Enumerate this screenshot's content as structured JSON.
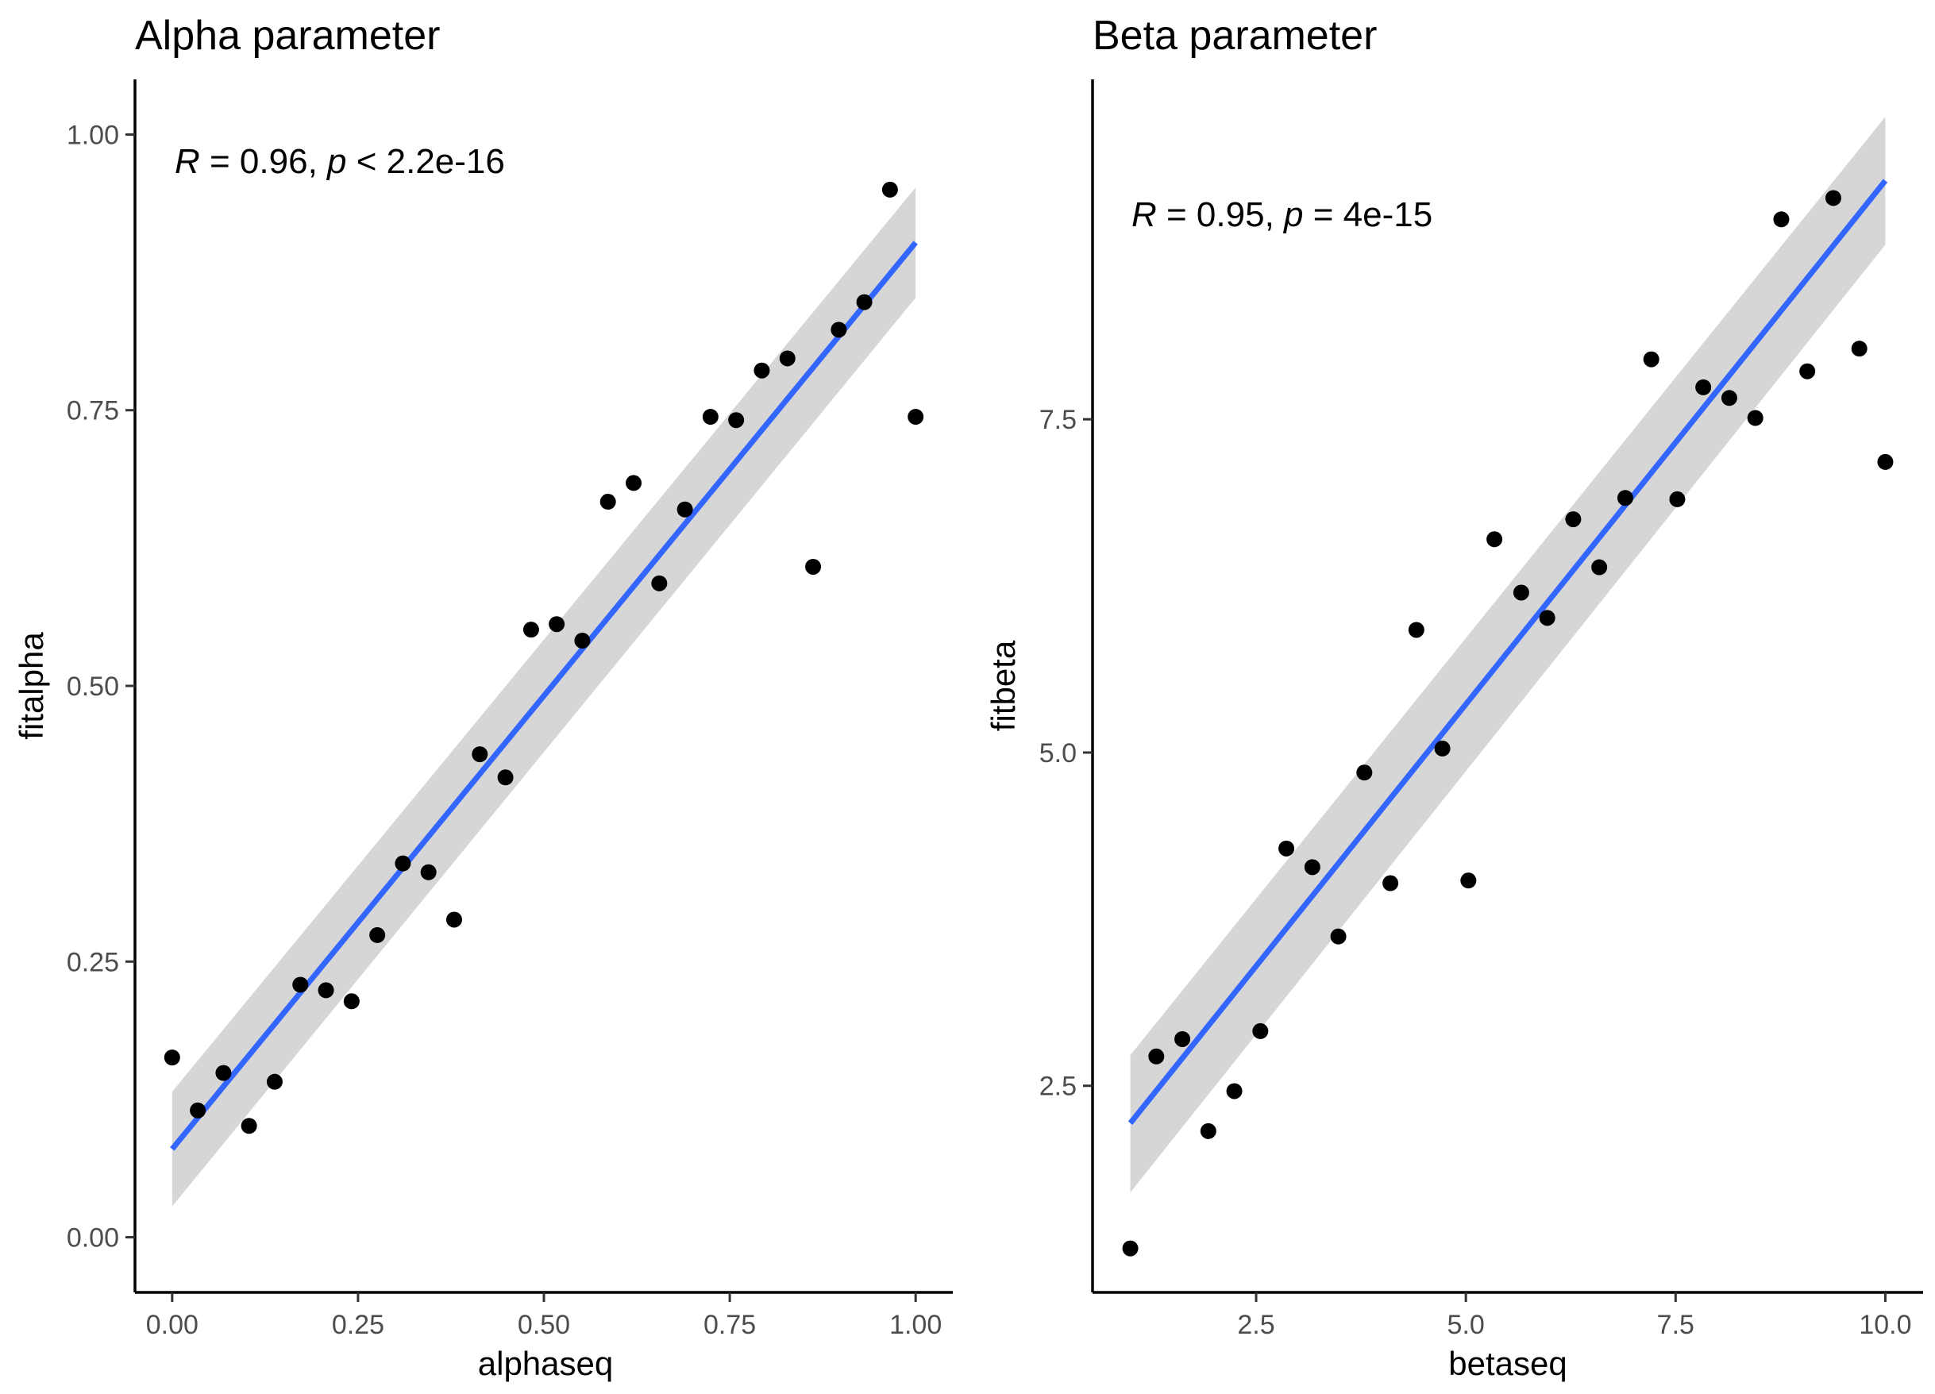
{
  "chart_data": [
    {
      "type": "scatter",
      "title": "Alpha parameter",
      "xlabel": "alphaseq",
      "ylabel": "fitalpha",
      "xlim": [
        -0.05,
        1.05
      ],
      "ylim": [
        -0.05,
        1.05
      ],
      "xticks": [
        0.0,
        0.25,
        0.5,
        0.75,
        1.0
      ],
      "xtick_labels": [
        "0.00",
        "0.25",
        "0.50",
        "0.75",
        "1.00"
      ],
      "yticks": [
        0.0,
        0.25,
        0.5,
        0.75,
        1.0
      ],
      "ytick_labels": [
        "0.00",
        "0.25",
        "0.50",
        "0.75",
        "1.00"
      ],
      "annotation": {
        "r_sym": "R",
        "r_text": " = 0.96, ",
        "p_sym": "p",
        "p_text": " < 2.2e-16",
        "x": 0.0,
        "y": 0.975
      },
      "fit": {
        "x": [
          0.0,
          1.0
        ],
        "y": [
          0.08,
          0.902
        ],
        "band_lower": [
          0.028,
          0.852
        ],
        "band_upper": [
          0.132,
          0.952
        ]
      },
      "grid": false,
      "legend": "none",
      "colors": {
        "points": "#000000",
        "fit_line": "#3366ff",
        "band": "#999999"
      },
      "x": [
        0.0,
        0.0345,
        0.069,
        0.1034,
        0.1379,
        0.1724,
        0.2069,
        0.2414,
        0.2759,
        0.3103,
        0.3448,
        0.3793,
        0.4138,
        0.4483,
        0.4828,
        0.5172,
        0.5517,
        0.5862,
        0.6207,
        0.6552,
        0.6897,
        0.7241,
        0.7586,
        0.7931,
        0.8276,
        0.8621,
        0.8966,
        0.931,
        0.9655,
        1.0
      ],
      "y": [
        0.163,
        0.115,
        0.149,
        0.101,
        0.141,
        0.229,
        0.224,
        0.214,
        0.274,
        0.339,
        0.331,
        0.288,
        0.438,
        0.417,
        0.551,
        0.556,
        0.541,
        0.667,
        0.684,
        0.593,
        0.66,
        0.744,
        0.741,
        0.786,
        0.797,
        0.608,
        0.823,
        0.848,
        0.95,
        0.744
      ]
    },
    {
      "type": "scatter",
      "title": "Beta parameter",
      "xlabel": "betaseq",
      "ylabel": "fitbeta",
      "xlim": [
        0.55,
        10.45
      ],
      "ylim": [
        0.95,
        10.05
      ],
      "xticks": [
        2.5,
        5.0,
        7.5,
        10.0
      ],
      "xtick_labels": [
        "2.5",
        "5.0",
        "7.5",
        "10.0"
      ],
      "yticks": [
        2.5,
        5.0,
        7.5
      ],
      "ytick_labels": [
        "2.5",
        "5.0",
        "7.5"
      ],
      "annotation": {
        "r_sym": "R",
        "r_text": " = 0.95, ",
        "p_sym": "p",
        "p_text": " = 4e-15",
        "x": 1.0,
        "y": 8.9
      },
      "fit": {
        "x": [
          1.0,
          10.0
        ],
        "y": [
          2.22,
          9.29
        ],
        "band_lower": [
          1.7,
          8.81
        ],
        "band_upper": [
          2.73,
          9.77
        ]
      },
      "grid": false,
      "legend": "none",
      "colors": {
        "points": "#000000",
        "fit_line": "#3366ff",
        "band": "#999999"
      },
      "x": [
        1.0,
        1.31,
        1.62,
        1.93,
        2.24,
        2.55,
        2.86,
        3.17,
        3.48,
        3.79,
        4.1,
        4.41,
        4.72,
        5.03,
        5.34,
        5.66,
        5.97,
        6.28,
        6.59,
        6.9,
        7.21,
        7.52,
        7.83,
        8.14,
        8.45,
        8.76,
        9.07,
        9.38,
        9.69,
        10.0
      ],
      "y": [
        1.28,
        2.72,
        2.85,
        2.16,
        2.46,
        2.91,
        4.28,
        4.14,
        3.62,
        4.85,
        4.02,
        5.92,
        5.03,
        4.04,
        6.6,
        6.2,
        6.01,
        6.75,
        6.39,
        6.91,
        7.95,
        6.9,
        7.74,
        7.66,
        7.51,
        9.0,
        7.86,
        9.16,
        8.03,
        7.18
      ]
    }
  ]
}
